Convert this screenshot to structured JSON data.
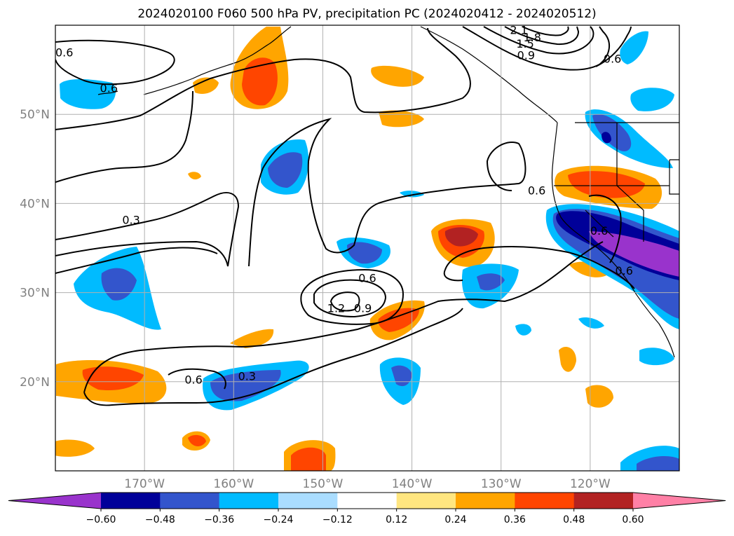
{
  "title": "2024020100 F060 500 hPa PV, precipitation PC (2024020412 - 2024020512)",
  "map": {
    "lon_range": [
      -180,
      -110
    ],
    "lat_range": [
      10,
      60
    ],
    "lat_ticks": [
      {
        "value": 50,
        "label": "50°N"
      },
      {
        "value": 40,
        "label": "40°N"
      },
      {
        "value": 30,
        "label": "30°N"
      },
      {
        "value": 20,
        "label": "20°N"
      }
    ],
    "lon_ticks": [
      {
        "value": -170,
        "label": "170°W"
      },
      {
        "value": -160,
        "label": "160°W"
      },
      {
        "value": -150,
        "label": "150°W"
      },
      {
        "value": -140,
        "label": "140°W"
      },
      {
        "value": -130,
        "label": "130°W"
      },
      {
        "value": -120,
        "label": "120°W"
      }
    ],
    "contour_labels": [
      {
        "text": "0.6",
        "lon": -179,
        "lat": 56.5
      },
      {
        "text": "0.6",
        "lon": -174,
        "lat": 52.5
      },
      {
        "text": "0.3",
        "lon": -171.5,
        "lat": 37.7
      },
      {
        "text": "0.6",
        "lon": -145,
        "lat": 31.2
      },
      {
        "text": "1.2",
        "lon": -148.5,
        "lat": 27.8
      },
      {
        "text": "0.9",
        "lon": -145.5,
        "lat": 27.8
      },
      {
        "text": "0.6",
        "lon": -126,
        "lat": 41
      },
      {
        "text": "0.6",
        "lon": -119,
        "lat": 36.5
      },
      {
        "text": "0.6",
        "lon": -116.2,
        "lat": 32
      },
      {
        "text": "0.6",
        "lon": -117.5,
        "lat": 55.8
      },
      {
        "text": "0.6",
        "lon": -164.5,
        "lat": 19.8
      },
      {
        "text": "0.3",
        "lon": -158.5,
        "lat": 20.2
      },
      {
        "text": "2.1",
        "lon": -128,
        "lat": 59
      },
      {
        "text": "1.8",
        "lon": -126.5,
        "lat": 58.2
      },
      {
        "text": "1.5",
        "lon": -127.3,
        "lat": 57.5
      },
      {
        "text": "0.9",
        "lon": -127.2,
        "lat": 56.2
      }
    ]
  },
  "colorbar": {
    "tick_labels": [
      "−0.60",
      "−0.48",
      "−0.36",
      "−0.24",
      "−0.12",
      "0.12",
      "0.24",
      "0.36",
      "0.48",
      "0.60"
    ],
    "colors": [
      "#9933cc",
      "#000099",
      "#3355cc",
      "#00bbff",
      "#aaddff",
      "#ffffff",
      "#ffe680",
      "#ffa500",
      "#ff4500",
      "#b22222",
      "#ff80a6"
    ]
  }
}
